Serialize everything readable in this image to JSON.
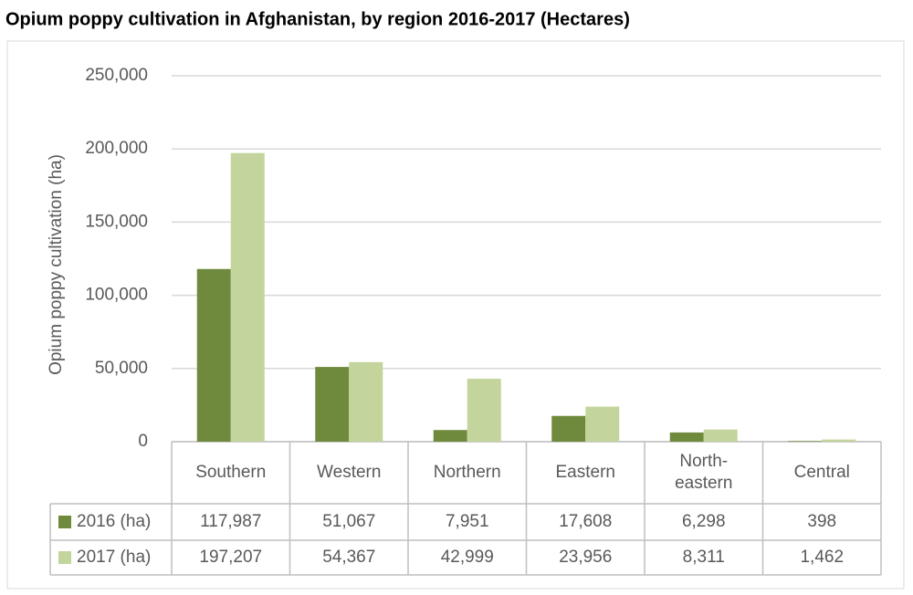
{
  "chart_data": {
    "type": "bar",
    "title": "Opium poppy cultivation in Afghanistan, by region 2016-2017 (Hectares)",
    "y_label": "Opium poppy cultivation (ha)",
    "categories": [
      "Southern",
      "Western",
      "Northern",
      "Eastern",
      "North-eastern",
      "Central"
    ],
    "series": [
      {
        "name": "2016 (ha)",
        "color": "#6f8a3d",
        "values": [
          117987,
          51067,
          7951,
          17608,
          6298,
          398
        ],
        "value_labels": [
          "117,987",
          "51,067",
          "7,951",
          "17,608",
          "6,298",
          "398"
        ]
      },
      {
        "name": "2017 (ha)",
        "color": "#c3d59c",
        "values": [
          197207,
          54367,
          42999,
          23956,
          8311,
          1462
        ],
        "value_labels": [
          "197,207",
          "54,367",
          "42,999",
          "23,956",
          "8,311",
          "1,462"
        ]
      }
    ],
    "ylim": [
      0,
      250000
    ],
    "yticks": [
      0,
      {
        "value": 50000,
        "label": "50,000"
      },
      {
        "value": 100000,
        "label": "100,000"
      },
      {
        "value": 150000,
        "label": "150,000"
      },
      {
        "value": 200000,
        "label": "200,000"
      },
      {
        "value": 250000,
        "label": "250,000"
      }
    ],
    "grid": true
  }
}
